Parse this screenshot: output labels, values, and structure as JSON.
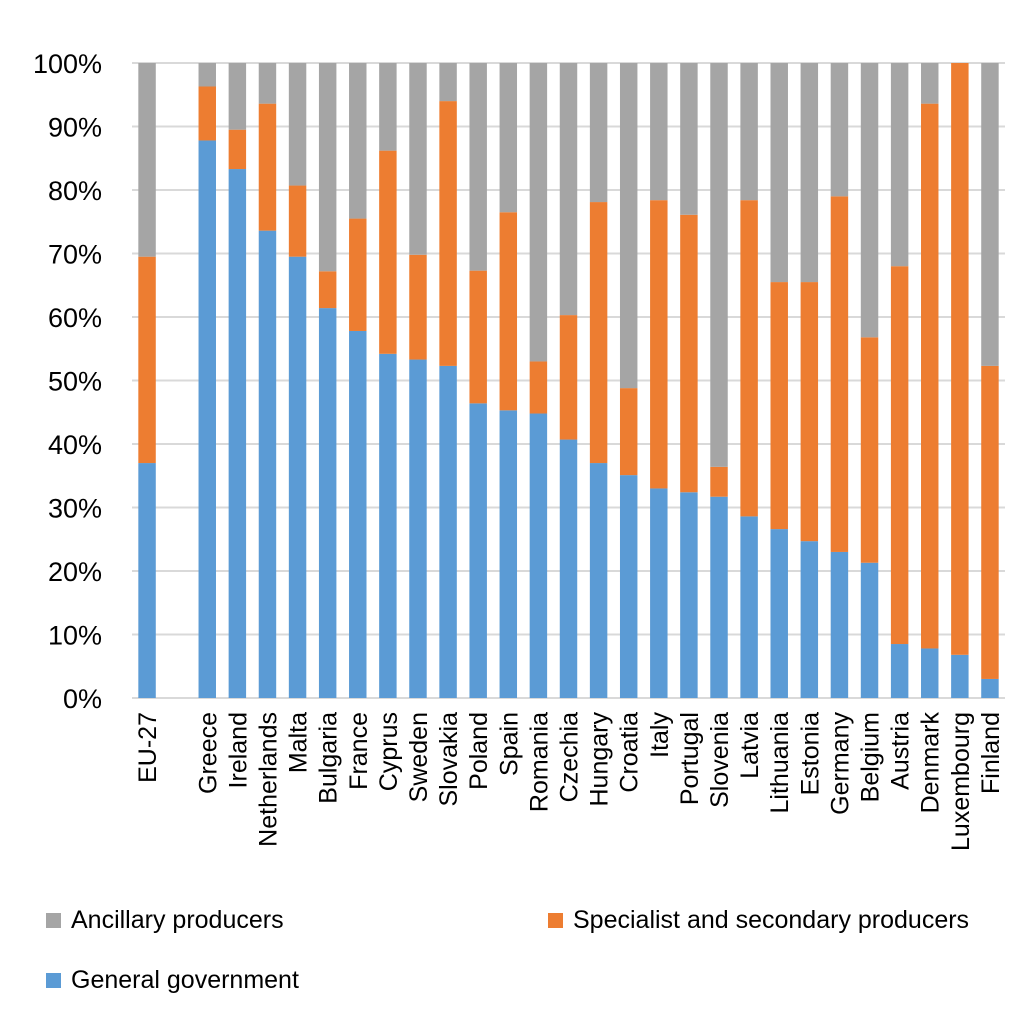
{
  "chart_data": {
    "type": "bar",
    "stacked": true,
    "percent_stacked": true,
    "title": "",
    "xlabel": "",
    "ylabel": "",
    "ylim": [
      0,
      100
    ],
    "y_ticks": [
      "0%",
      "10%",
      "20%",
      "30%",
      "40%",
      "50%",
      "60%",
      "70%",
      "80%",
      "90%",
      "100%"
    ],
    "grid": true,
    "legend_position": "bottom",
    "categories": [
      "EU-27",
      "",
      "Greece",
      "Ireland",
      "Netherlands",
      "Malta",
      "Bulgaria",
      "France",
      "Cyprus",
      "Sweden",
      "Slovakia",
      "Poland",
      "Spain",
      "Romania",
      "Czechia",
      "Hungary",
      "Croatia",
      "Italy",
      "Portugal",
      "Slovenia",
      "Latvia",
      "Lithuania",
      "Estonia",
      "Germany",
      "Belgium",
      "Austria",
      "Denmark",
      "Luxembourg",
      "Finland"
    ],
    "series": [
      {
        "name": "General government",
        "color": "#5b9bd5",
        "values": [
          37.0,
          null,
          87.8,
          83.3,
          73.6,
          69.5,
          61.4,
          57.8,
          54.2,
          53.3,
          52.3,
          46.4,
          45.3,
          44.8,
          40.7,
          37.0,
          35.1,
          33.0,
          32.4,
          31.7,
          28.6,
          26.6,
          24.7,
          23.0,
          21.3,
          8.5,
          7.8,
          6.8,
          3.0
        ]
      },
      {
        "name": "Specialist and secondary producers",
        "color": "#ed7d31",
        "values": [
          32.5,
          null,
          8.5,
          6.2,
          20.0,
          11.2,
          5.8,
          17.7,
          32.0,
          16.5,
          41.7,
          20.9,
          31.2,
          8.2,
          19.6,
          41.1,
          13.7,
          45.4,
          43.7,
          4.7,
          49.8,
          38.9,
          40.8,
          56.0,
          35.5,
          59.5,
          85.8,
          93.2,
          49.3
        ]
      },
      {
        "name": "Ancillary producers",
        "color": "#a5a5a5",
        "values": [
          30.5,
          null,
          3.7,
          10.5,
          6.4,
          19.3,
          32.8,
          24.5,
          13.8,
          30.2,
          6.0,
          32.7,
          23.5,
          47.0,
          39.7,
          21.9,
          51.2,
          21.6,
          23.9,
          63.6,
          21.6,
          34.5,
          34.5,
          21.0,
          43.2,
          32.0,
          6.4,
          0.0,
          47.7
        ]
      }
    ]
  },
  "legend": {
    "items": [
      {
        "label": "Ancillary producers",
        "color": "#a5a5a5"
      },
      {
        "label": "Specialist and secondary producers",
        "color": "#ed7d31"
      },
      {
        "label": "General government",
        "color": "#5b9bd5"
      }
    ]
  }
}
